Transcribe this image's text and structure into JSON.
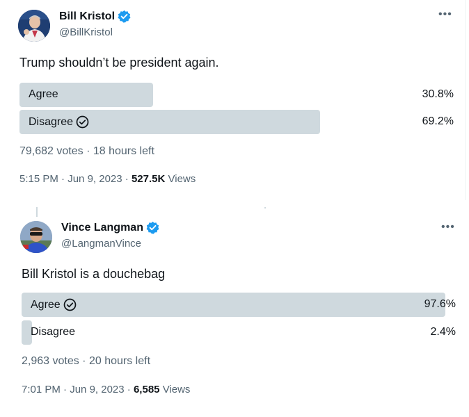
{
  "tweets": [
    {
      "author": {
        "name": "Bill Kristol",
        "handle": "@BillKristol"
      },
      "text": "Trump shouldn’t be president again.",
      "poll": {
        "options": [
          {
            "label": "Agree",
            "percent": "30.8%",
            "fraction": 0.308,
            "selected": false
          },
          {
            "label": "Disagree",
            "percent": "69.2%",
            "fraction": 0.692,
            "selected": true
          }
        ],
        "votes": "79,682 votes",
        "time_left": "18 hours left"
      },
      "time": "5:15 PM",
      "date": "Jun 9, 2023",
      "views_count": "527.5K",
      "views_label": "Views"
    },
    {
      "author": {
        "name": "Vince Langman",
        "handle": "@LangmanVince"
      },
      "text": "Bill Kristol is a douchebag",
      "poll": {
        "options": [
          {
            "label": "Agree",
            "percent": "97.6%",
            "fraction": 0.976,
            "selected": true
          },
          {
            "label": "Disagree",
            "percent": "2.4%",
            "fraction": 0.024,
            "selected": false
          }
        ],
        "votes": "2,963 votes",
        "time_left": "20 hours left"
      },
      "time": "7:01 PM",
      "date": "Jun 9, 2023",
      "views_count": "6,585",
      "views_label": "Views"
    }
  ],
  "icons": {
    "verified_color": "#1d9bf0",
    "more": "•••"
  },
  "colors": {
    "poll_bar": "#cfd9de",
    "secondary_text": "#536471",
    "primary_text": "#0f1419"
  }
}
